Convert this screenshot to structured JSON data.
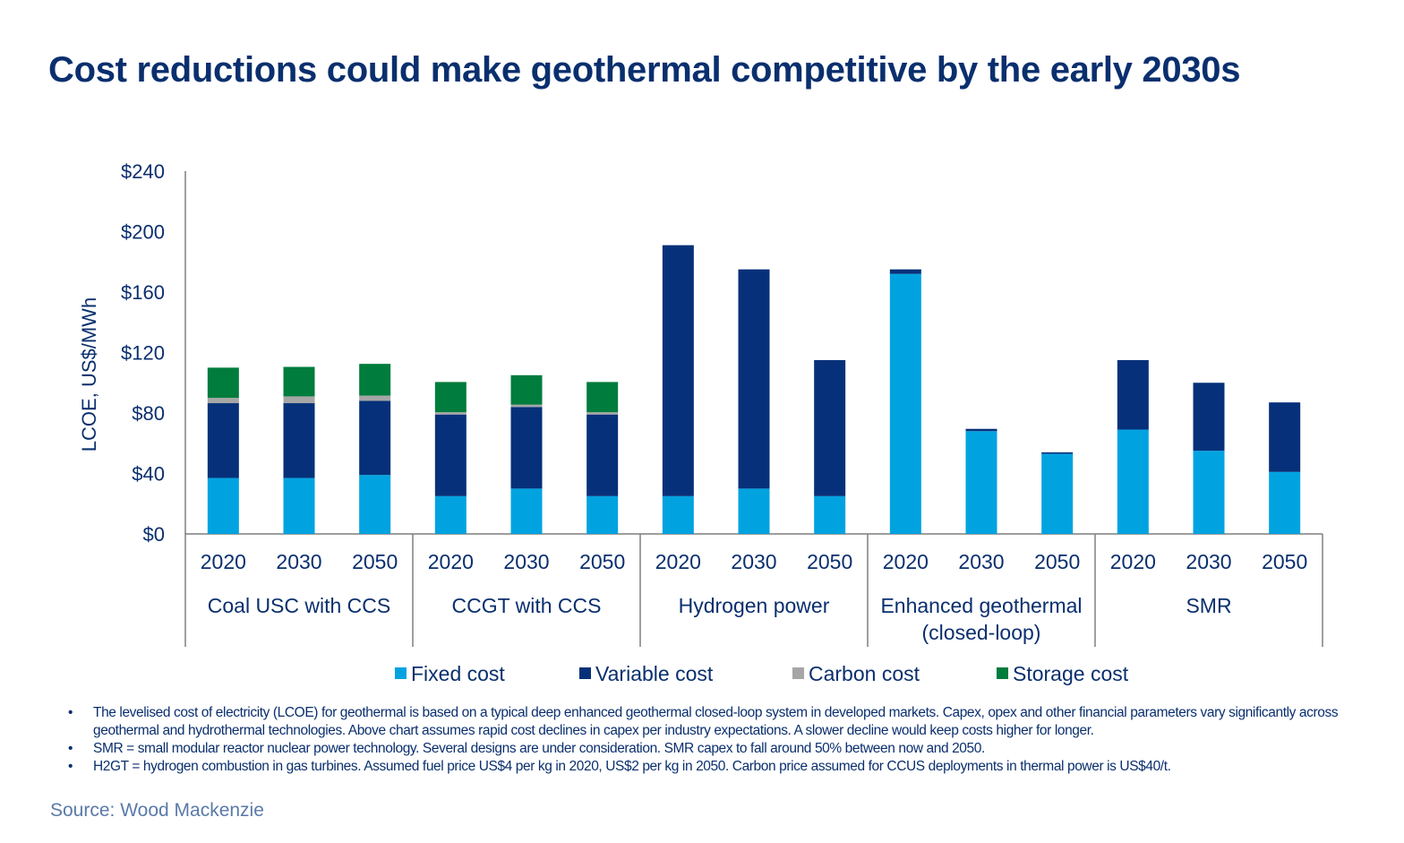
{
  "title": "Cost reductions could make geothermal competitive by the early 2030s",
  "chart_data": {
    "type": "bar",
    "stacked": true,
    "ylabel": "LCOE, US$/MWh",
    "ylim": [
      0,
      240
    ],
    "yticks": [
      "$0",
      "$40",
      "$80",
      "$120",
      "$160",
      "$200",
      "$240"
    ],
    "ytick_values": [
      0,
      40,
      80,
      120,
      160,
      200,
      240
    ],
    "grid": false,
    "legend_position": "bottom",
    "groups": [
      {
        "label": "Coal USC with CCS",
        "categories": [
          "2020",
          "2030",
          "2050"
        ]
      },
      {
        "label": "CCGT with CCS",
        "categories": [
          "2020",
          "2030",
          "2050"
        ]
      },
      {
        "label": "Hydrogen power",
        "categories": [
          "2020",
          "2030",
          "2050"
        ]
      },
      {
        "label": "Enhanced geothermal (closed-loop)",
        "categories": [
          "2020",
          "2030",
          "2050"
        ]
      },
      {
        "label": "SMR",
        "categories": [
          "2020",
          "2030",
          "2050"
        ]
      }
    ],
    "series": [
      {
        "name": "Fixed cost",
        "color": "#00a3e0",
        "values": [
          37,
          37,
          39,
          25,
          30,
          25,
          25,
          30,
          25,
          172,
          68,
          53,
          69,
          55,
          41
        ]
      },
      {
        "name": "Variable cost",
        "color": "#06317a",
        "values": [
          49.5,
          49.5,
          49,
          54,
          54,
          54,
          166,
          145,
          90,
          3,
          1.5,
          1,
          46,
          45,
          46
        ]
      },
      {
        "name": "Carbon cost",
        "color": "#a6a6a6",
        "values": [
          3.5,
          4.5,
          3.5,
          1.5,
          1.5,
          1.5,
          0,
          0,
          0,
          0,
          0,
          0,
          0,
          0,
          0
        ]
      },
      {
        "name": "Storage cost",
        "color": "#007c3d",
        "values": [
          20,
          19.5,
          21,
          20,
          19.5,
          20,
          0,
          0,
          0,
          0,
          0,
          0,
          0,
          0,
          0
        ]
      }
    ]
  },
  "notes": [
    "The levelised cost of electricity (LCOE) for geothermal is based on a typical deep enhanced geothermal closed-loop system in developed markets. Capex, opex and other financial parameters vary significantly across geothermal and hydrothermal technologies. Above chart assumes rapid cost declines in capex per industry expectations. A slower decline would keep costs higher for longer.",
    "SMR = small modular reactor nuclear power technology. Several designs are under consideration. SMR capex to fall around 50% between now and 2050.",
    "H2GT = hydrogen combustion in gas turbines. Assumed fuel price US$4 per kg in 2020, US$2 per kg in 2050. Carbon price assumed for CCUS deployments in thermal power is US$40/t."
  ],
  "source": "Source: Wood Mackenzie"
}
